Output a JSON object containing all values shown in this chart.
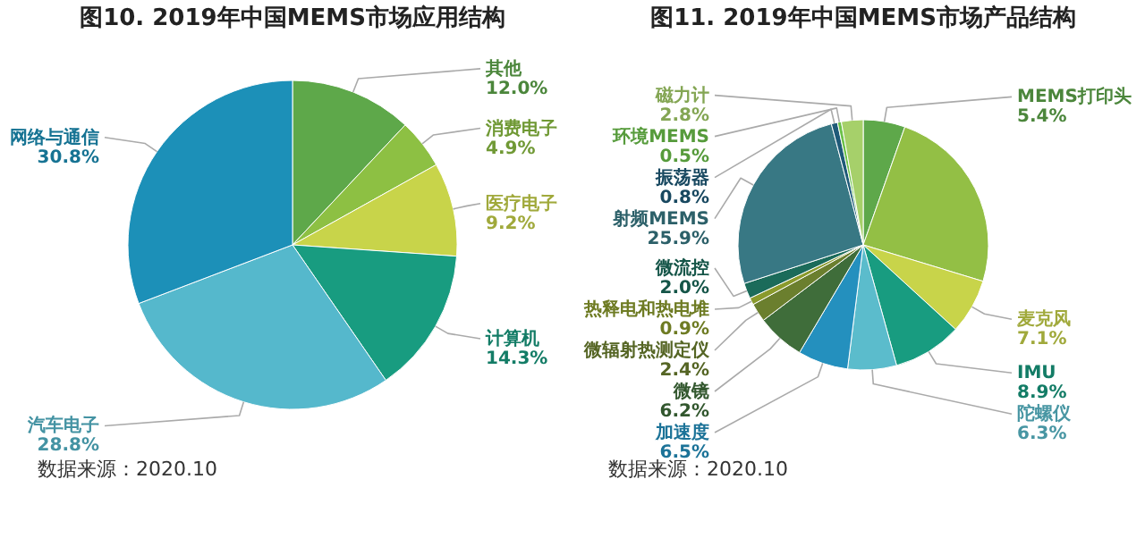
{
  "chart_data": [
    {
      "type": "pie",
      "title": "图10. 2019年中国MEMS市场应用结构",
      "categories": [
        "其他",
        "消费电子",
        "医疗电子",
        "计算机",
        "汽车电子",
        "网络与通信"
      ],
      "values": [
        12.0,
        4.9,
        9.2,
        14.3,
        28.8,
        30.8
      ],
      "value_labels": [
        "12.0%",
        "4.9%",
        "9.2%",
        "14.3%",
        "28.8%",
        "30.8%"
      ],
      "colors": [
        "#5ea84a",
        "#8dc043",
        "#c8d44a",
        "#189c80",
        "#55b8cc",
        "#1c90b8"
      ],
      "annotations": [
        "数据来源：2020.10"
      ]
    },
    {
      "type": "pie",
      "title": "图11. 2019年中国MEMS市场产品结构",
      "categories": [
        "MEMS打印头",
        null,
        "麦克风",
        "IMU",
        "陀螺仪",
        "加速度",
        "微镜",
        "微辐射热测定仪",
        "热释电和热电堆",
        "微流控",
        "射频MEMS",
        "振荡器",
        "环境MEMS",
        "磁力计"
      ],
      "values": [
        5.4,
        24.3,
        7.1,
        8.9,
        6.3,
        6.5,
        6.2,
        2.4,
        0.9,
        2.0,
        25.9,
        0.8,
        0.5,
        2.8
      ],
      "value_labels": [
        "5.4%",
        null,
        "7.1%",
        "8.9%",
        "6.3%",
        "6.5%",
        "6.2%",
        "2.4%",
        "0.9%",
        "2.0%",
        "25.9%",
        "0.8%",
        "0.5%",
        "2.8%"
      ],
      "colors": [
        "#5ea84a",
        "#93bf45",
        "#c8d44a",
        "#189c80",
        "#5bbccc",
        "#2490be",
        "#3f6d3a",
        "#6b7f2e",
        "#8a9a2c",
        "#1b6b5a",
        "#387884",
        "#1f5a78",
        "#6cc24a",
        "#a6d06a"
      ],
      "annotations": [
        "数据来源：2020.10"
      ]
    }
  ]
}
